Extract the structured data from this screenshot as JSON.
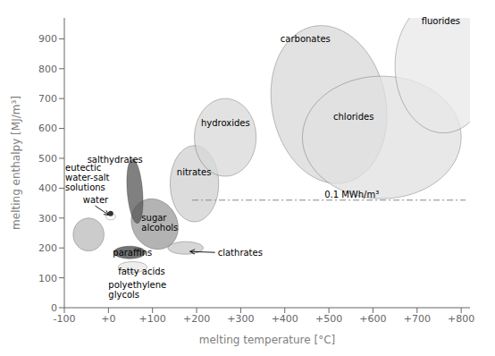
{
  "chart_data": {
    "type": "region",
    "xlabel": "melting temperature [°C]",
    "ylabel": "melting enthalpy [MJ/m³]",
    "xlim": [
      -100,
      820
    ],
    "ylim": [
      0,
      970
    ],
    "xticks": [
      -100,
      {
        "value": 0,
        "label": "+0"
      },
      {
        "value": 100,
        "label": "+100"
      },
      {
        "value": 200,
        "label": "+200"
      },
      {
        "value": 300,
        "label": "+300"
      },
      {
        "value": 400,
        "label": "+400"
      },
      {
        "value": 500,
        "label": "+500"
      },
      {
        "value": 600,
        "label": "+600"
      },
      {
        "value": 700,
        "label": "+700"
      },
      {
        "value": 800,
        "label": "+800"
      }
    ],
    "yticks": [
      0,
      100,
      200,
      300,
      400,
      500,
      600,
      700,
      800,
      900
    ],
    "grid": false,
    "regions": [
      {
        "cx": 500,
        "cy": 680,
        "width": 260,
        "height": 530,
        "angle": 5,
        "color": "#d8d8d8"
      },
      {
        "cx": 620,
        "cy": 570,
        "width": 360,
        "height": 410,
        "angle": 0,
        "color": "#e0e0e0"
      },
      {
        "cx": 760,
        "cy": 810,
        "width": 220,
        "height": 450,
        "angle": 0,
        "color": "#e8e8e8"
      },
      {
        "cx": 175,
        "cy": 200,
        "width": 80,
        "height": 42,
        "angle": 0,
        "color": "#c8c8c8"
      },
      {
        "cx": -45,
        "cy": 245,
        "width": 70,
        "height": 110,
        "angle": 0,
        "color": "#bbbbbb"
      },
      {
        "cx": 195,
        "cy": 415,
        "width": 110,
        "height": 255,
        "angle": 0,
        "color": "#d0d0d0"
      },
      {
        "cx": 265,
        "cy": 570,
        "width": 140,
        "height": 260,
        "angle": 0,
        "color": "#d8d8d8"
      },
      {
        "cx": 105,
        "cy": 280,
        "width": 105,
        "height": 170,
        "angle": 8,
        "color": "#999999"
      },
      {
        "cx": 5,
        "cy": 305,
        "width": 22,
        "height": 22,
        "angle": 0,
        "color": "#ffffff"
      },
      {
        "cx": 60,
        "cy": 390,
        "width": 35,
        "height": 215,
        "angle": 3,
        "color": "#555555"
      },
      {
        "cx": 48,
        "cy": 185,
        "width": 72,
        "height": 42,
        "angle": 0,
        "color": "#444444"
      },
      {
        "cx": 55,
        "cy": 136,
        "width": 65,
        "height": 36,
        "angle": 0,
        "color": "#e8e8e8"
      }
    ],
    "points": [
      {
        "x": 5,
        "y": 315,
        "color": "#333333"
      }
    ],
    "reference_lines": [
      {
        "y": 360,
        "x_start": 190,
        "x_end": 810,
        "line_style": "dashdot",
        "color": "#888888"
      }
    ],
    "annotations": [
      {
        "text": "eutectic\nwater-salt\nsolutions",
        "x": -98,
        "y": 435
      },
      {
        "text": "water",
        "x": -58,
        "y": 362,
        "arrow_x": 1,
        "arrow_y": 310
      },
      {
        "text": "salthydrates",
        "x": -48,
        "y": 495
      },
      {
        "text": "paraffins",
        "x": 10,
        "y": 185
      },
      {
        "text": "fatty acids",
        "x": 22,
        "y": 122
      },
      {
        "text": "polyethylene\nglycols",
        "x": 0,
        "y": 60
      },
      {
        "text": "sugar\nalcohols",
        "x": 75,
        "y": 285
      },
      {
        "text": "nitrates",
        "x": 155,
        "y": 455
      },
      {
        "text": "hydroxides",
        "x": 210,
        "y": 618
      },
      {
        "text": "clathrates",
        "x": 248,
        "y": 185,
        "arrow_x": 185,
        "arrow_y": 188
      },
      {
        "text": "carbonates",
        "x": 390,
        "y": 900
      },
      {
        "text": "chlorides",
        "x": 510,
        "y": 638
      },
      {
        "text": "fluorides",
        "x": 710,
        "y": 960
      },
      {
        "text": "0.1 MWh/m³",
        "x": 490,
        "y": 378
      }
    ]
  }
}
